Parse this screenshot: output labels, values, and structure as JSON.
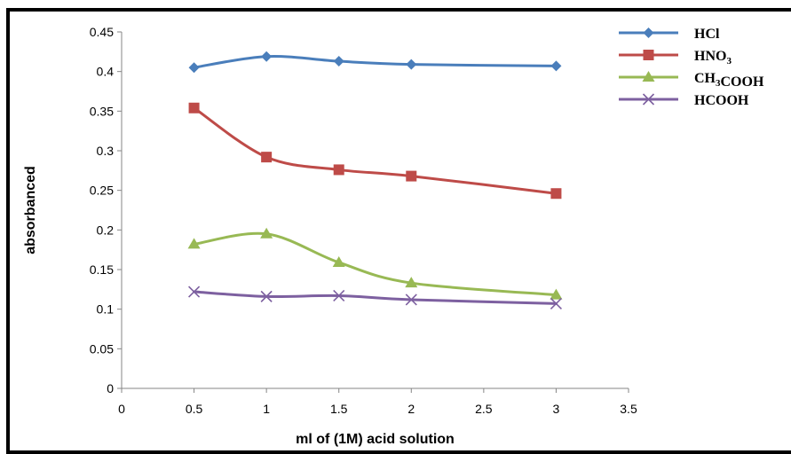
{
  "chart_data": {
    "type": "line",
    "title": "",
    "xlabel": "ml of (1M) acid solution",
    "ylabel": "absorbanced",
    "xlim": [
      0,
      3.5
    ],
    "ylim": [
      0,
      0.45
    ],
    "x_ticks": [
      "0",
      "0.5",
      "1",
      "1.5",
      "2",
      "2.5",
      "3",
      "3.5"
    ],
    "y_ticks": [
      "0",
      "0.05",
      "0.1",
      "0.15",
      "0.2",
      "0.25",
      "0.3",
      "0.35",
      "0.4",
      "0.45"
    ],
    "grid": false,
    "smooth": true,
    "legend_position": "top-right",
    "x": [
      0.5,
      1,
      1.5,
      2,
      3
    ],
    "series": [
      {
        "name": "HCl",
        "name_parts": [
          {
            "t": "HCl",
            "sub": false
          }
        ],
        "marker": "diamond",
        "color": "#4a7ebb",
        "values": [
          0.405,
          0.419,
          0.413,
          0.409,
          0.407
        ]
      },
      {
        "name": "HNO3",
        "name_parts": [
          {
            "t": "HNO",
            "sub": false
          },
          {
            "t": "3",
            "sub": true
          }
        ],
        "marker": "square",
        "color": "#be4b48",
        "values": [
          0.354,
          0.292,
          0.276,
          0.268,
          0.246
        ]
      },
      {
        "name": "CH3COOH",
        "name_parts": [
          {
            "t": "CH",
            "sub": false
          },
          {
            "t": "3",
            "sub": true
          },
          {
            "t": "COOH",
            "sub": false
          }
        ],
        "marker": "triangle",
        "color": "#98b954",
        "values": [
          0.182,
          0.195,
          0.159,
          0.133,
          0.118
        ]
      },
      {
        "name": "HCOOH",
        "name_parts": [
          {
            "t": "HCOOH",
            "sub": false
          }
        ],
        "marker": "x",
        "color": "#7d60a0",
        "values": [
          0.122,
          0.116,
          0.117,
          0.112,
          0.107
        ]
      }
    ]
  }
}
